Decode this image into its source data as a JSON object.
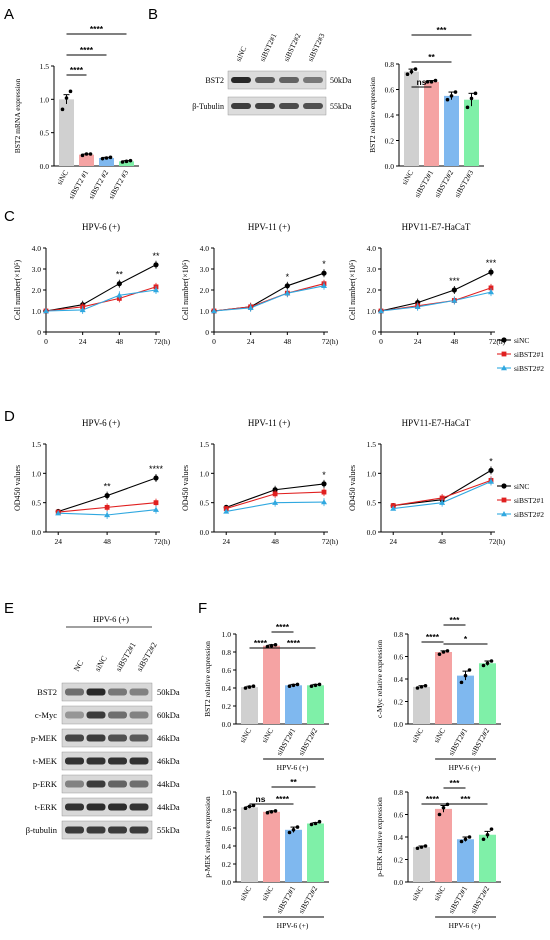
{
  "panels": {
    "A": "A",
    "B": "B",
    "C": "C",
    "D": "D",
    "E": "E",
    "F": "F"
  },
  "colors": {
    "gray": "#d0d0d0",
    "red": "#f5a3a3",
    "blue": "#7fb8ef",
    "green": "#7ff0a8",
    "siNC_line": "#000000",
    "si1_line": "#e02020",
    "si2_line": "#30a8e0"
  },
  "panel_B_blot": {
    "lanes": [
      "siNC",
      "siBST2#1",
      "siBST2#2",
      "siBST2#3"
    ],
    "rows": [
      {
        "label": "BST2",
        "kda": "50kDa"
      },
      {
        "label": "β-Tubulin",
        "kda": "55kDa"
      }
    ]
  },
  "panel_E_blot": {
    "group_label": "HPV-6 (+)",
    "lanes": [
      "NC",
      "siNC",
      "siBST2#1",
      "siBST2#2"
    ],
    "rows": [
      {
        "label": "BST2",
        "kda": "50kDa"
      },
      {
        "label": "c-Myc",
        "kda": "60kDa"
      },
      {
        "label": "p-MEK",
        "kda": "46kDa"
      },
      {
        "label": "t-MEK",
        "kda": "46kDa"
      },
      {
        "label": "p-ERK",
        "kda": "44kDa"
      },
      {
        "label": "t-ERK",
        "kda": "44kDa"
      },
      {
        "label": "β-tubulin",
        "kda": "55kDa"
      }
    ]
  },
  "chart_data": [
    {
      "id": "A",
      "type": "bar",
      "ylabel": "BST2 mRNA expression",
      "categories": [
        "siNC",
        "siBST2 #1",
        "siBST2 #2",
        "siBST2 #3"
      ],
      "values": [
        1.0,
        0.17,
        0.12,
        0.07
      ],
      "errors": [
        0.07,
        0.01,
        0.01,
        0.01
      ],
      "points": [
        [
          0.85,
          1.02,
          1.12
        ],
        [
          0.16,
          0.18,
          0.18
        ],
        [
          0.11,
          0.12,
          0.13
        ],
        [
          0.06,
          0.07,
          0.08
        ]
      ],
      "ylim": [
        0,
        1.5
      ],
      "yticks": [
        "0.0",
        "0.5",
        "1.0",
        "1.5"
      ],
      "sig": [
        "****",
        "****",
        "****"
      ]
    },
    {
      "id": "B",
      "type": "bar",
      "ylabel": "BST2 relative expression",
      "categories": [
        "siNC",
        "siBST2#1",
        "siBST2#2",
        "siBST2#3"
      ],
      "values": [
        0.74,
        0.66,
        0.55,
        0.52
      ],
      "errors": [
        0.02,
        0.01,
        0.03,
        0.05
      ],
      "points": [
        [
          0.72,
          0.74,
          0.76
        ],
        [
          0.66,
          0.66,
          0.67
        ],
        [
          0.52,
          0.55,
          0.58
        ],
        [
          0.46,
          0.53,
          0.57
        ]
      ],
      "ylim": [
        0,
        0.8
      ],
      "yticks": [
        "0.0",
        "0.2",
        "0.4",
        "0.6",
        "0.8"
      ],
      "sig": [
        "ns",
        "**",
        "***"
      ]
    },
    {
      "id": "C1",
      "type": "line",
      "title": "HPV-6 (+)",
      "ylabel": "Cell number(×10⁵)",
      "x": [
        0,
        24,
        48,
        72
      ],
      "xticks": [
        "0",
        "24",
        "48",
        "72(h)"
      ],
      "ylim": [
        0,
        4.0
      ],
      "yticks": [
        "0",
        "1.0",
        "2.0",
        "3.0",
        "4.0"
      ],
      "series": [
        {
          "name": "siNC",
          "values": [
            1.0,
            1.3,
            2.3,
            3.2
          ]
        },
        {
          "name": "siBST2#1",
          "values": [
            1.0,
            1.2,
            1.6,
            2.15
          ]
        },
        {
          "name": "siBST2#2",
          "values": [
            1.0,
            1.05,
            1.75,
            2.0
          ]
        }
      ],
      "sig": [
        {
          "x": 48,
          "text": "**"
        },
        {
          "x": 72,
          "text": "**"
        }
      ]
    },
    {
      "id": "C2",
      "type": "line",
      "title": "HPV-11 (+)",
      "ylabel": "Cell number(×10⁵)",
      "x": [
        0,
        24,
        48,
        72
      ],
      "xticks": [
        "0",
        "24",
        "48",
        "72(h)"
      ],
      "ylim": [
        0,
        4.0
      ],
      "yticks": [
        "0",
        "1.0",
        "2.0",
        "3.0",
        "4.0"
      ],
      "series": [
        {
          "name": "siNC",
          "values": [
            1.0,
            1.2,
            2.2,
            2.8
          ]
        },
        {
          "name": "siBST2#1",
          "values": [
            1.0,
            1.2,
            1.85,
            2.3
          ]
        },
        {
          "name": "siBST2#2",
          "values": [
            1.0,
            1.15,
            1.85,
            2.2
          ]
        }
      ],
      "sig": [
        {
          "x": 48,
          "text": "*"
        },
        {
          "x": 72,
          "text": "*"
        }
      ]
    },
    {
      "id": "C3",
      "type": "line",
      "title": "HPV11-E7-HaCaT",
      "ylabel": "Cell number(×10⁵)",
      "x": [
        0,
        24,
        48,
        72
      ],
      "xticks": [
        "0",
        "24",
        "48",
        "72(h)"
      ],
      "ylim": [
        0,
        4.0
      ],
      "yticks": [
        "0",
        "1.0",
        "2.0",
        "3.0",
        "4.0"
      ],
      "series": [
        {
          "name": "siNC",
          "values": [
            1.0,
            1.4,
            2.0,
            2.85
          ]
        },
        {
          "name": "siBST2#1",
          "values": [
            1.0,
            1.25,
            1.5,
            2.1
          ]
        },
        {
          "name": "siBST2#2",
          "values": [
            1.0,
            1.2,
            1.5,
            1.9
          ]
        }
      ],
      "sig": [
        {
          "x": 48,
          "text": "***"
        },
        {
          "x": 72,
          "text": "***"
        }
      ]
    },
    {
      "id": "D1",
      "type": "line",
      "title": "HPV-6 (+)",
      "ylabel": "OD450 values",
      "x": [
        24,
        48,
        72
      ],
      "xticks": [
        "24",
        "48",
        "72(h)"
      ],
      "ylim": [
        0,
        1.5
      ],
      "yticks": [
        "0.0",
        "0.5",
        "1.0",
        "1.5"
      ],
      "series": [
        {
          "name": "siNC",
          "values": [
            0.35,
            0.62,
            0.92
          ]
        },
        {
          "name": "siBST2#1",
          "values": [
            0.34,
            0.42,
            0.5
          ]
        },
        {
          "name": "siBST2#2",
          "values": [
            0.32,
            0.29,
            0.38
          ]
        }
      ],
      "sig": [
        {
          "x": 48,
          "text": "**"
        },
        {
          "x": 72,
          "text": "****"
        }
      ]
    },
    {
      "id": "D2",
      "type": "line",
      "title": "HPV-11 (+)",
      "ylabel": "OD450 values",
      "x": [
        24,
        48,
        72
      ],
      "xticks": [
        "24",
        "48",
        "72(h)"
      ],
      "ylim": [
        0,
        1.5
      ],
      "yticks": [
        "0.0",
        "0.5",
        "1.0",
        "1.5"
      ],
      "series": [
        {
          "name": "siNC",
          "values": [
            0.42,
            0.72,
            0.82
          ]
        },
        {
          "name": "siBST2#1",
          "values": [
            0.4,
            0.65,
            0.68
          ]
        },
        {
          "name": "siBST2#2",
          "values": [
            0.35,
            0.5,
            0.51
          ]
        }
      ],
      "sig": [
        {
          "x": 72,
          "text": "*"
        }
      ]
    },
    {
      "id": "D3",
      "type": "line",
      "title": "HPV11-E7-HaCaT",
      "ylabel": "OD450 values",
      "x": [
        24,
        48,
        72
      ],
      "xticks": [
        "24",
        "48",
        "72(h)"
      ],
      "ylim": [
        0,
        1.5
      ],
      "yticks": [
        "0.0",
        "0.5",
        "1.0",
        "1.5"
      ],
      "series": [
        {
          "name": "siNC",
          "values": [
            0.45,
            0.55,
            1.05
          ]
        },
        {
          "name": "siBST2#1",
          "values": [
            0.45,
            0.58,
            0.88
          ]
        },
        {
          "name": "siBST2#2",
          "values": [
            0.4,
            0.5,
            0.86
          ]
        }
      ],
      "sig": [
        {
          "x": 72,
          "text": "*"
        }
      ]
    },
    {
      "id": "F1",
      "type": "bar",
      "ylabel": "BST2 relative expression",
      "group_label": "HPV-6 (+)",
      "categories": [
        "siNC",
        "siNC",
        "siBST2#1",
        "siBST2#2"
      ],
      "values": [
        0.41,
        0.87,
        0.43,
        0.43
      ],
      "errors": [
        0.01,
        0.01,
        0.01,
        0.01
      ],
      "points": [
        [
          0.4,
          0.41,
          0.42
        ],
        [
          0.86,
          0.87,
          0.88
        ],
        [
          0.42,
          0.43,
          0.44
        ],
        [
          0.42,
          0.43,
          0.44
        ]
      ],
      "ylim": [
        0,
        1.0
      ],
      "yticks": [
        "0.0",
        "0.2",
        "0.4",
        "0.6",
        "0.8",
        "1.0"
      ],
      "sig": [
        "****",
        "****",
        "****"
      ]
    },
    {
      "id": "F2",
      "type": "bar",
      "ylabel": "c-Myc relative expression",
      "group_label": "HPV-6 (+)",
      "categories": [
        "siNC",
        "siNC",
        "siBST2#1",
        "siBST2#2"
      ],
      "values": [
        0.33,
        0.64,
        0.43,
        0.54
      ],
      "errors": [
        0.01,
        0.01,
        0.04,
        0.02
      ],
      "points": [
        [
          0.32,
          0.33,
          0.34
        ],
        [
          0.62,
          0.64,
          0.65
        ],
        [
          0.37,
          0.43,
          0.48
        ],
        [
          0.52,
          0.54,
          0.56
        ]
      ],
      "ylim": [
        0,
        0.8
      ],
      "yticks": [
        "0.0",
        "0.2",
        "0.4",
        "0.6",
        "0.8"
      ],
      "sig": [
        "****",
        "***",
        "*"
      ]
    },
    {
      "id": "F3",
      "type": "bar",
      "ylabel": "p-MEK relative expression",
      "group_label": "HPV-6 (+)",
      "categories": [
        "siNC",
        "siNC",
        "siBST2#1",
        "siBST2#2"
      ],
      "values": [
        0.83,
        0.78,
        0.58,
        0.65
      ],
      "errors": [
        0.01,
        0.01,
        0.03,
        0.01
      ],
      "points": [
        [
          0.82,
          0.84,
          0.85
        ],
        [
          0.77,
          0.78,
          0.79
        ],
        [
          0.55,
          0.58,
          0.61
        ],
        [
          0.64,
          0.65,
          0.67
        ]
      ],
      "ylim": [
        0,
        1.0
      ],
      "yticks": [
        "0.0",
        "0.2",
        "0.4",
        "0.6",
        "0.8",
        "1.0"
      ],
      "sig": [
        "ns",
        "****",
        "**"
      ]
    },
    {
      "id": "F4",
      "type": "bar",
      "ylabel": "p-ERK relative expression",
      "group_label": "HPV-6 (+)",
      "categories": [
        "siNC",
        "siNC",
        "siBST2#1",
        "siBST2#2"
      ],
      "values": [
        0.31,
        0.65,
        0.38,
        0.42
      ],
      "errors": [
        0.01,
        0.03,
        0.02,
        0.03
      ],
      "points": [
        [
          0.3,
          0.31,
          0.32
        ],
        [
          0.6,
          0.66,
          0.69
        ],
        [
          0.36,
          0.38,
          0.4
        ],
        [
          0.38,
          0.42,
          0.47
        ]
      ],
      "ylim": [
        0,
        0.8
      ],
      "yticks": [
        "0.0",
        "0.2",
        "0.4",
        "0.6",
        "0.8"
      ],
      "sig": [
        "****",
        "***",
        "***"
      ]
    }
  ]
}
